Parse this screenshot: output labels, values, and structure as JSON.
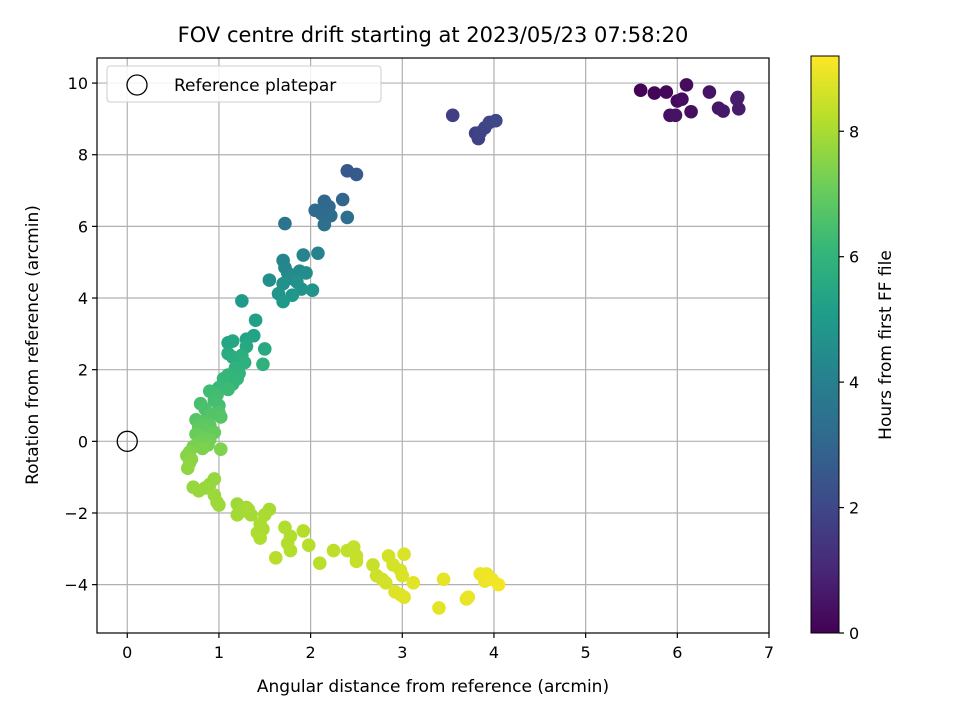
{
  "chart_data": {
    "type": "scatter",
    "title": "FOV centre drift starting at 2023/05/23 07:58:20",
    "xlabel": "Angular distance from reference (arcmin)",
    "ylabel": "Rotation from reference (arcmin)",
    "xlim": [
      -0.33,
      7.0
    ],
    "ylim": [
      -5.35,
      10.7
    ],
    "xticks": [
      0,
      1,
      2,
      3,
      4,
      5,
      6,
      7
    ],
    "yticks": [
      -4,
      -2,
      0,
      2,
      4,
      6,
      8,
      10
    ],
    "grid": true,
    "legend": {
      "placement": "top-left",
      "entries": [
        "Reference platepar"
      ]
    },
    "reference_point": {
      "x": 0,
      "y": 0,
      "label": "Reference platepar"
    },
    "colorbar": {
      "label": "Hours from first FF file",
      "range": [
        0,
        9.2
      ],
      "ticks": [
        0,
        2,
        4,
        6,
        8
      ],
      "colormap": "viridis",
      "colors": [
        "#440154",
        "#482878",
        "#3e4989",
        "#31688e",
        "#26828e",
        "#1f9e89",
        "#35b779",
        "#6ece58",
        "#b5de2b",
        "#fde725"
      ]
    },
    "points": [
      {
        "x": 5.6,
        "y": 9.8,
        "t": 0.05
      },
      {
        "x": 5.75,
        "y": 9.72,
        "t": 0.1
      },
      {
        "x": 5.88,
        "y": 9.75,
        "t": 0.15
      },
      {
        "x": 6.0,
        "y": 9.5,
        "t": 0.2
      },
      {
        "x": 6.1,
        "y": 9.95,
        "t": 0.25
      },
      {
        "x": 6.05,
        "y": 9.55,
        "t": 0.3
      },
      {
        "x": 6.15,
        "y": 9.2,
        "t": 0.35
      },
      {
        "x": 5.92,
        "y": 9.1,
        "t": 0.4
      },
      {
        "x": 5.98,
        "y": 9.1,
        "t": 0.45
      },
      {
        "x": 6.35,
        "y": 9.75,
        "t": 0.5
      },
      {
        "x": 6.45,
        "y": 9.3,
        "t": 0.55
      },
      {
        "x": 6.5,
        "y": 9.22,
        "t": 0.6
      },
      {
        "x": 6.65,
        "y": 9.55,
        "t": 0.65
      },
      {
        "x": 6.67,
        "y": 9.28,
        "t": 0.7
      },
      {
        "x": 6.66,
        "y": 9.6,
        "t": 0.75
      },
      {
        "x": 3.55,
        "y": 9.1,
        "t": 1.7
      },
      {
        "x": 3.8,
        "y": 8.6,
        "t": 1.75
      },
      {
        "x": 3.83,
        "y": 8.45,
        "t": 1.8
      },
      {
        "x": 3.85,
        "y": 8.62,
        "t": 1.85
      },
      {
        "x": 3.9,
        "y": 8.75,
        "t": 1.9
      },
      {
        "x": 3.95,
        "y": 8.9,
        "t": 1.95
      },
      {
        "x": 4.02,
        "y": 8.95,
        "t": 2.0
      },
      {
        "x": 2.4,
        "y": 7.55,
        "t": 2.55
      },
      {
        "x": 2.5,
        "y": 7.45,
        "t": 2.6
      },
      {
        "x": 2.35,
        "y": 6.75,
        "t": 3.0
      },
      {
        "x": 2.15,
        "y": 6.7,
        "t": 3.05
      },
      {
        "x": 2.2,
        "y": 6.55,
        "t": 3.1
      },
      {
        "x": 2.05,
        "y": 6.45,
        "t": 3.15
      },
      {
        "x": 2.12,
        "y": 6.35,
        "t": 3.2
      },
      {
        "x": 2.22,
        "y": 6.3,
        "t": 3.25
      },
      {
        "x": 2.4,
        "y": 6.25,
        "t": 3.3
      },
      {
        "x": 2.15,
        "y": 6.05,
        "t": 3.35
      },
      {
        "x": 1.72,
        "y": 6.08,
        "t": 3.5
      },
      {
        "x": 2.08,
        "y": 5.25,
        "t": 4.1
      },
      {
        "x": 1.92,
        "y": 5.2,
        "t": 4.15
      },
      {
        "x": 1.7,
        "y": 5.05,
        "t": 4.2
      },
      {
        "x": 1.72,
        "y": 4.85,
        "t": 4.25
      },
      {
        "x": 1.75,
        "y": 4.7,
        "t": 4.3
      },
      {
        "x": 1.8,
        "y": 4.6,
        "t": 4.35
      },
      {
        "x": 1.88,
        "y": 4.75,
        "t": 4.4
      },
      {
        "x": 1.95,
        "y": 4.7,
        "t": 4.45
      },
      {
        "x": 1.78,
        "y": 4.55,
        "t": 4.5
      },
      {
        "x": 1.55,
        "y": 4.5,
        "t": 4.55
      },
      {
        "x": 1.85,
        "y": 4.45,
        "t": 4.6
      },
      {
        "x": 1.7,
        "y": 4.4,
        "t": 4.65
      },
      {
        "x": 1.9,
        "y": 4.25,
        "t": 4.7
      },
      {
        "x": 2.02,
        "y": 4.22,
        "t": 4.75
      },
      {
        "x": 1.65,
        "y": 4.12,
        "t": 4.8
      },
      {
        "x": 1.8,
        "y": 4.08,
        "t": 4.85
      },
      {
        "x": 1.7,
        "y": 3.9,
        "t": 4.9
      },
      {
        "x": 1.25,
        "y": 3.92,
        "t": 4.95
      },
      {
        "x": 1.4,
        "y": 3.38,
        "t": 5.2
      },
      {
        "x": 1.38,
        "y": 2.95,
        "t": 5.3
      },
      {
        "x": 1.3,
        "y": 2.85,
        "t": 5.35
      },
      {
        "x": 1.1,
        "y": 2.75,
        "t": 5.4
      },
      {
        "x": 1.15,
        "y": 2.8,
        "t": 5.45
      },
      {
        "x": 1.3,
        "y": 2.65,
        "t": 5.5
      },
      {
        "x": 1.5,
        "y": 2.58,
        "t": 5.55
      },
      {
        "x": 1.1,
        "y": 2.45,
        "t": 5.6
      },
      {
        "x": 1.15,
        "y": 2.35,
        "t": 5.65
      },
      {
        "x": 1.2,
        "y": 2.25,
        "t": 5.7
      },
      {
        "x": 1.25,
        "y": 2.4,
        "t": 5.75
      },
      {
        "x": 1.28,
        "y": 2.2,
        "t": 5.8
      },
      {
        "x": 1.48,
        "y": 2.15,
        "t": 5.85
      },
      {
        "x": 1.18,
        "y": 2.05,
        "t": 5.9
      },
      {
        "x": 1.22,
        "y": 1.9,
        "t": 5.95
      },
      {
        "x": 1.1,
        "y": 1.85,
        "t": 6.0
      },
      {
        "x": 1.2,
        "y": 1.75,
        "t": 6.05
      },
      {
        "x": 1.15,
        "y": 1.6,
        "t": 6.1
      },
      {
        "x": 1.05,
        "y": 1.75,
        "t": 6.15
      },
      {
        "x": 1.0,
        "y": 1.5,
        "t": 6.2
      },
      {
        "x": 1.1,
        "y": 1.45,
        "t": 6.25
      },
      {
        "x": 0.9,
        "y": 1.4,
        "t": 6.3
      },
      {
        "x": 0.98,
        "y": 1.3,
        "t": 6.35
      },
      {
        "x": 0.95,
        "y": 1.15,
        "t": 6.4
      },
      {
        "x": 1.0,
        "y": 1.0,
        "t": 6.45
      },
      {
        "x": 0.8,
        "y": 1.05,
        "t": 6.5
      },
      {
        "x": 0.85,
        "y": 0.9,
        "t": 6.55
      },
      {
        "x": 1.0,
        "y": 0.8,
        "t": 6.6
      },
      {
        "x": 0.92,
        "y": 0.75,
        "t": 6.65
      },
      {
        "x": 1.02,
        "y": 0.68,
        "t": 6.7
      },
      {
        "x": 0.75,
        "y": 0.6,
        "t": 6.75
      },
      {
        "x": 0.82,
        "y": 0.55,
        "t": 6.8
      },
      {
        "x": 0.9,
        "y": 0.45,
        "t": 6.85
      },
      {
        "x": 0.78,
        "y": 0.4,
        "t": 6.9
      },
      {
        "x": 0.85,
        "y": 0.3,
        "t": 6.95
      },
      {
        "x": 0.95,
        "y": 0.25,
        "t": 7.0
      },
      {
        "x": 0.75,
        "y": 0.2,
        "t": 7.05
      },
      {
        "x": 0.82,
        "y": 0.1,
        "t": 7.1
      },
      {
        "x": 0.9,
        "y": 0.05,
        "t": 7.15
      },
      {
        "x": 0.78,
        "y": -0.05,
        "t": 7.2
      },
      {
        "x": 0.88,
        "y": -0.1,
        "t": 7.25
      },
      {
        "x": 0.72,
        "y": -0.15,
        "t": 7.3
      },
      {
        "x": 0.82,
        "y": -0.2,
        "t": 7.35
      },
      {
        "x": 1.02,
        "y": -0.22,
        "t": 7.4
      },
      {
        "x": 0.68,
        "y": -0.3,
        "t": 7.45
      },
      {
        "x": 0.65,
        "y": -0.4,
        "t": 7.5
      },
      {
        "x": 0.7,
        "y": -0.5,
        "t": 7.55
      },
      {
        "x": 0.68,
        "y": -0.6,
        "t": 7.6
      },
      {
        "x": 0.66,
        "y": -0.75,
        "t": 7.65
      },
      {
        "x": 0.95,
        "y": -1.05,
        "t": 7.7
      },
      {
        "x": 0.9,
        "y": -1.2,
        "t": 7.72
      },
      {
        "x": 0.72,
        "y": -1.28,
        "t": 7.74
      },
      {
        "x": 0.85,
        "y": -1.3,
        "t": 7.76
      },
      {
        "x": 0.78,
        "y": -1.38,
        "t": 7.78
      },
      {
        "x": 0.95,
        "y": -1.5,
        "t": 7.8
      },
      {
        "x": 0.98,
        "y": -1.7,
        "t": 7.82
      },
      {
        "x": 1.0,
        "y": -1.78,
        "t": 7.84
      },
      {
        "x": 1.2,
        "y": -1.75,
        "t": 7.86
      },
      {
        "x": 1.3,
        "y": -1.85,
        "t": 7.88
      },
      {
        "x": 1.25,
        "y": -1.95,
        "t": 7.9
      },
      {
        "x": 1.2,
        "y": -2.05,
        "t": 7.92
      },
      {
        "x": 1.35,
        "y": -2.05,
        "t": 7.94
      },
      {
        "x": 1.32,
        "y": -1.9,
        "t": 7.96
      },
      {
        "x": 1.55,
        "y": -1.9,
        "t": 7.98
      },
      {
        "x": 1.5,
        "y": -2.05,
        "t": 8.0
      },
      {
        "x": 1.45,
        "y": -2.3,
        "t": 8.02
      },
      {
        "x": 1.48,
        "y": -2.45,
        "t": 8.04
      },
      {
        "x": 1.42,
        "y": -2.55,
        "t": 8.06
      },
      {
        "x": 1.45,
        "y": -2.7,
        "t": 8.08
      },
      {
        "x": 1.72,
        "y": -2.4,
        "t": 8.1
      },
      {
        "x": 1.78,
        "y": -2.65,
        "t": 8.12
      },
      {
        "x": 1.75,
        "y": -2.85,
        "t": 8.14
      },
      {
        "x": 1.78,
        "y": -3.05,
        "t": 8.16
      },
      {
        "x": 1.92,
        "y": -2.5,
        "t": 8.18
      },
      {
        "x": 1.98,
        "y": -2.9,
        "t": 8.2
      },
      {
        "x": 1.62,
        "y": -3.25,
        "t": 8.22
      },
      {
        "x": 2.1,
        "y": -3.4,
        "t": 8.25
      },
      {
        "x": 2.25,
        "y": -3.05,
        "t": 8.3
      },
      {
        "x": 2.4,
        "y": -3.05,
        "t": 8.35
      },
      {
        "x": 2.47,
        "y": -2.95,
        "t": 8.38
      },
      {
        "x": 2.5,
        "y": -3.2,
        "t": 8.4
      },
      {
        "x": 2.5,
        "y": -3.35,
        "t": 8.42
      },
      {
        "x": 2.68,
        "y": -3.45,
        "t": 8.45
      },
      {
        "x": 2.72,
        "y": -3.75,
        "t": 8.5
      },
      {
        "x": 2.78,
        "y": -3.85,
        "t": 8.55
      },
      {
        "x": 2.82,
        "y": -3.95,
        "t": 8.58
      },
      {
        "x": 2.85,
        "y": -3.2,
        "t": 8.6
      },
      {
        "x": 2.9,
        "y": -3.45,
        "t": 8.62
      },
      {
        "x": 2.98,
        "y": -3.6,
        "t": 8.65
      },
      {
        "x": 3.02,
        "y": -3.15,
        "t": 8.7
      },
      {
        "x": 3.0,
        "y": -3.75,
        "t": 8.72
      },
      {
        "x": 2.92,
        "y": -4.2,
        "t": 8.75
      },
      {
        "x": 2.98,
        "y": -4.28,
        "t": 8.78
      },
      {
        "x": 3.02,
        "y": -4.35,
        "t": 8.8
      },
      {
        "x": 3.12,
        "y": -3.95,
        "t": 8.82
      },
      {
        "x": 3.4,
        "y": -4.65,
        "t": 8.85
      },
      {
        "x": 3.45,
        "y": -3.85,
        "t": 8.88
      },
      {
        "x": 3.7,
        "y": -4.4,
        "t": 8.9
      },
      {
        "x": 3.72,
        "y": -4.35,
        "t": 8.92
      },
      {
        "x": 3.85,
        "y": -3.7,
        "t": 8.95
      },
      {
        "x": 3.92,
        "y": -3.7,
        "t": 8.97
      },
      {
        "x": 3.9,
        "y": -3.9,
        "t": 9.0
      },
      {
        "x": 3.98,
        "y": -3.85,
        "t": 9.02
      },
      {
        "x": 4.05,
        "y": -4.0,
        "t": 9.05
      }
    ]
  }
}
